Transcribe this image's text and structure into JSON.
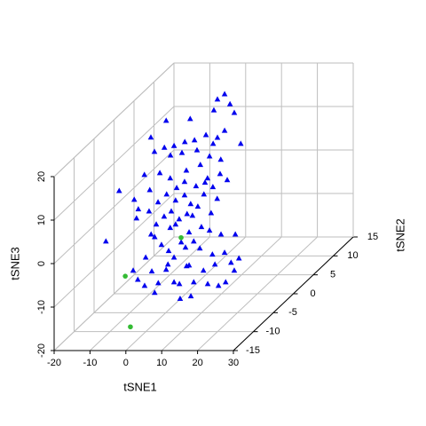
{
  "chart_data": {
    "type": "scatter3d",
    "xlabel": "tSNE1",
    "ylabel": "tSNE2",
    "zlabel": "tSNE3",
    "xlim": [
      -20,
      30
    ],
    "ylim": [
      -15,
      15
    ],
    "zlim": [
      -20,
      20
    ],
    "xticks": [
      -20,
      -10,
      0,
      10,
      20,
      30
    ],
    "yticks": [
      -15,
      -10,
      -5,
      0,
      5,
      10,
      15
    ],
    "zticks": [
      -20,
      -10,
      0,
      10,
      20
    ],
    "grid": true,
    "series": [
      {
        "color": "#0000ee",
        "marker": "triangle",
        "x": [
          -0.3,
          1.2,
          -2.3,
          -3.3,
          2.4,
          -9.9,
          -16.6,
          -0.3,
          -15.3,
          -5.5,
          -2.3,
          -11.4,
          -14.4,
          -8.7,
          4.2,
          -17.1,
          -3.5,
          -14.3,
          -12.2,
          -4.5,
          4.2,
          -8.0,
          -15.4,
          -1.5,
          -5.4,
          4.0,
          -12.8,
          6.0,
          -9.9,
          -17.1,
          -5.9,
          0.5,
          -2.7,
          2.0,
          -8.1,
          -15.6,
          -13.0,
          -10.9,
          -5.9,
          -8.8,
          -0.5,
          3.2,
          -8.4,
          -13.3,
          -4.2,
          -2.2,
          -18.8,
          -9.6,
          -15.8,
          -5.2,
          1.5,
          -11.6,
          -19.3,
          -7.4,
          -3.7,
          -13.8,
          -8.4,
          -1.2,
          -9.9,
          -0.2,
          -4.1,
          6.5,
          12.2,
          15.4,
          19.4,
          0.8,
          7.8,
          -16.7,
          -3.1,
          4.3,
          -1.2,
          5.5,
          13.0,
          16.4,
          9.5,
          -5.6,
          2.3,
          6.5,
          18.2,
          20.4,
          -9.1,
          -3.9,
          0.1,
          5.8,
          13.7,
          10.5,
          19.1,
          -7.8,
          -2.1,
          2.3,
          7.8,
          11.7,
          14.7,
          -3.1,
          3.8,
          7.0,
          16.7,
          0.6,
          4.0,
          -5.9
        ],
        "y": [
          10,
          10,
          10,
          10,
          10,
          10,
          10,
          10,
          5,
          10,
          10,
          10,
          10,
          10,
          10,
          10,
          10,
          5,
          10,
          10,
          5,
          10,
          10,
          5,
          5,
          5,
          5,
          5,
          5,
          5,
          5,
          5,
          5,
          5,
          5,
          5,
          -5,
          5,
          5,
          -5,
          5,
          5,
          5,
          5,
          5,
          5,
          5,
          5,
          5,
          5,
          5,
          5,
          5,
          5,
          5,
          5,
          5,
          5,
          5,
          5,
          -5,
          -5,
          -5,
          -5,
          -5,
          -5,
          -5,
          -5,
          -5,
          -5,
          -5,
          -5,
          -5,
          -5,
          -5,
          -5,
          -5,
          -5,
          -5,
          -5,
          -5,
          -5,
          -5,
          -5,
          -5,
          -5,
          -5,
          -5,
          -5,
          -5,
          -5,
          -5,
          -5,
          -5,
          -5,
          -5,
          -5,
          -5,
          -5,
          -5
        ],
        "z": [
          17.2,
          14.9,
          16.0,
          13.5,
          12.9,
          11.5,
          11.1,
          8.8,
          11.6,
          7.8,
          7.2,
          6.2,
          5.3,
          6.6,
          5.8,
          4.9,
          5.8,
          8.3,
          3.7,
          2.9,
          6.5,
          4.3,
          3.1,
          5.3,
          4.0,
          3.2,
          3.4,
          1.8,
          2.2,
          3.0,
          1.4,
          2.2,
          0.4,
          0.2,
          0.0,
          -0.5,
          8.0,
          -1.5,
          -1.7,
          6.0,
          -1.5,
          -2.5,
          -2.9,
          -3.3,
          -3.7,
          -4.3,
          -4.9,
          -5.4,
          -5.4,
          -6.0,
          -5.8,
          -6.6,
          -7.0,
          -7.2,
          -6.4,
          -8.4,
          -8.4,
          -9.0,
          -9.2,
          1.2,
          -2.0,
          -1.5,
          -1.1,
          -2.0,
          -2.0,
          -5.8,
          -3.6,
          -3.6,
          -2.6,
          -3.8,
          -4.4,
          -5.0,
          -6.6,
          -6.2,
          -5.2,
          -7.3,
          -7.3,
          -9.1,
          -8.5,
          -7.5,
          -10.3,
          -10.5,
          -10.1,
          -9.3,
          -8.9,
          -10.3,
          -10.3,
          -12.4,
          -13.2,
          -13.0,
          -13.0,
          -13.4,
          -13.8,
          -15.4,
          -13.4,
          -16.2,
          -13.0,
          -8.9,
          -16.8,
          -13.8
        ]
      },
      {
        "color": "#33bb33",
        "marker": "circle",
        "x": [
          -4.3,
          -11.3,
          -1.3
        ],
        "y": [
          -10,
          -5,
          0
        ],
        "z": [
          -18.9,
          -11.6,
          -7.1
        ]
      }
    ]
  }
}
